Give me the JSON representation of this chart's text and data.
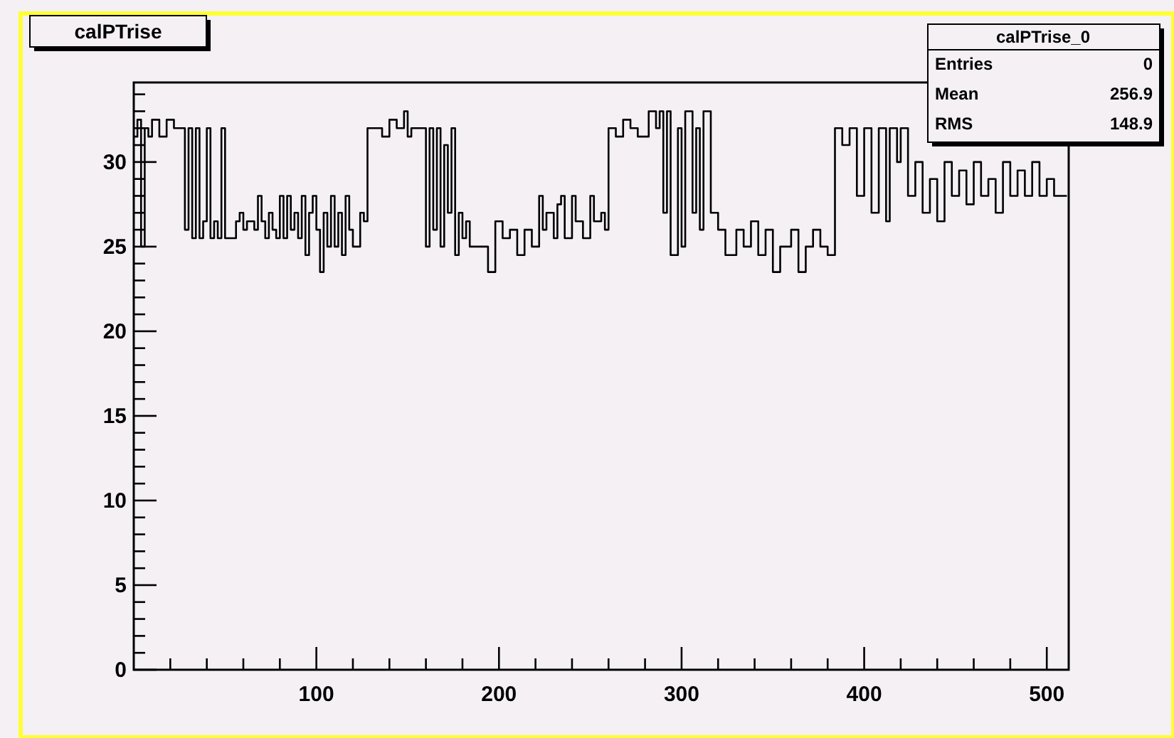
{
  "chart_data": {
    "type": "step",
    "title": "calPTrise",
    "annotations": [
      "calPTrise_0",
      "Entries",
      "0",
      "Mean",
      "256.9",
      "RMS",
      "148.9"
    ],
    "xlim": [
      0,
      512
    ],
    "ylim": [
      0,
      34.7
    ],
    "xticks": [
      {
        "value": 20,
        "label": null
      },
      {
        "value": 40,
        "label": null
      },
      {
        "value": 60,
        "label": null
      },
      {
        "value": 80,
        "label": null
      },
      100,
      {
        "value": 120,
        "label": null
      },
      {
        "value": 140,
        "label": null
      },
      {
        "value": 160,
        "label": null
      },
      {
        "value": 180,
        "label": null
      },
      200,
      {
        "value": 220,
        "label": null
      },
      {
        "value": 240,
        "label": null
      },
      {
        "value": 260,
        "label": null
      },
      {
        "value": 280,
        "label": null
      },
      300,
      {
        "value": 320,
        "label": null
      },
      {
        "value": 340,
        "label": null
      },
      {
        "value": 360,
        "label": null
      },
      {
        "value": 380,
        "label": null
      },
      400,
      {
        "value": 420,
        "label": null
      },
      {
        "value": 440,
        "label": null
      },
      {
        "value": 460,
        "label": null
      },
      {
        "value": 480,
        "label": null
      },
      500
    ],
    "yticks": [
      0,
      {
        "value": 1,
        "label": null
      },
      {
        "value": 2,
        "label": null
      },
      {
        "value": 3,
        "label": null
      },
      {
        "value": 4,
        "label": null
      },
      5,
      {
        "value": 6,
        "label": null
      },
      {
        "value": 7,
        "label": null
      },
      {
        "value": 8,
        "label": null
      },
      {
        "value": 9,
        "label": null
      },
      10,
      {
        "value": 11,
        "label": null
      },
      {
        "value": 12,
        "label": null
      },
      {
        "value": 13,
        "label": null
      },
      {
        "value": 14,
        "label": null
      },
      15,
      {
        "value": 16,
        "label": null
      },
      {
        "value": 17,
        "label": null
      },
      {
        "value": 18,
        "label": null
      },
      {
        "value": 19,
        "label": null
      },
      20,
      {
        "value": 21,
        "label": null
      },
      {
        "value": 22,
        "label": null
      },
      {
        "value": 23,
        "label": null
      },
      {
        "value": 24,
        "label": null
      },
      25,
      {
        "value": 26,
        "label": null
      },
      {
        "value": 27,
        "label": null
      },
      {
        "value": 28,
        "label": null
      },
      {
        "value": 29,
        "label": null
      },
      30,
      {
        "value": 31,
        "label": null
      },
      {
        "value": 32,
        "label": null
      },
      {
        "value": 33,
        "label": null
      },
      {
        "value": 34,
        "label": null
      }
    ],
    "grid": false,
    "series": [
      {
        "color": "#000000",
        "x": [
          0,
          2,
          4,
          6,
          8,
          10,
          14,
          18,
          22,
          26,
          28,
          30,
          32,
          34,
          36,
          38,
          40,
          42,
          44,
          46,
          48,
          50,
          54,
          56,
          58,
          60,
          62,
          66,
          68,
          70,
          72,
          74,
          76,
          78,
          80,
          82,
          84,
          86,
          88,
          90,
          92,
          94,
          96,
          98,
          100,
          102,
          104,
          106,
          108,
          110,
          112,
          114,
          116,
          118,
          120,
          124,
          126,
          128,
          132,
          136,
          140,
          144,
          148,
          150,
          152,
          158,
          160,
          162,
          164,
          166,
          168,
          170,
          172,
          174,
          176,
          178,
          180,
          182,
          184,
          190,
          194,
          198,
          202,
          206,
          210,
          214,
          218,
          222,
          224,
          226,
          230,
          232,
          234,
          236,
          240,
          242,
          246,
          250,
          252,
          256,
          258,
          260,
          264,
          268,
          272,
          276,
          282,
          286,
          288,
          290,
          292,
          294,
          298,
          300,
          302,
          306,
          308,
          310,
          312,
          316,
          320,
          324,
          330,
          334,
          338,
          342,
          346,
          350,
          354,
          360,
          364,
          368,
          372,
          376,
          380,
          384,
          388,
          392,
          396,
          400,
          404,
          408,
          412,
          414,
          418,
          420,
          424,
          428,
          432,
          436,
          440,
          444,
          448,
          452,
          456,
          460,
          464,
          468,
          472,
          476,
          480,
          484,
          488,
          492,
          496,
          500,
          504,
          511
        ],
        "values": [
          31.5,
          32.5,
          25,
          32,
          31.5,
          32.5,
          31.5,
          32.5,
          32,
          32,
          26,
          32,
          25.5,
          32,
          25.5,
          26.5,
          32,
          25.5,
          26.5,
          25.5,
          32,
          25.5,
          25.5,
          26.5,
          27,
          26,
          26.5,
          26,
          28,
          26.5,
          25.5,
          27,
          26,
          25.5,
          28,
          25.5,
          28,
          26,
          27,
          25.5,
          28,
          24.5,
          27,
          28,
          26,
          23.5,
          27,
          25,
          28,
          25,
          27,
          24.5,
          28,
          26,
          25,
          27,
          26.5,
          32,
          32,
          31.5,
          32.5,
          32,
          33,
          31.5,
          32,
          32,
          25,
          32,
          26,
          32,
          25,
          31,
          27,
          32,
          24.5,
          27,
          25.5,
          26.5,
          25,
          25,
          23.5,
          26.5,
          25.5,
          26,
          24.5,
          26,
          25,
          28,
          26,
          27,
          25.5,
          27.5,
          28,
          25.5,
          28,
          26.5,
          25.5,
          28,
          26.5,
          27,
          26,
          32,
          31.5,
          32.5,
          32,
          31.5,
          33,
          32,
          33,
          27,
          33,
          24.5,
          32,
          25,
          33,
          27,
          32,
          26,
          33,
          27,
          26,
          24.5,
          26,
          25,
          26.5,
          24.5,
          26,
          23.5,
          25,
          26,
          23.5,
          25,
          26,
          25,
          24.5,
          32,
          31,
          32,
          28,
          32,
          27,
          32,
          26.5,
          32,
          30,
          32,
          28,
          30,
          27,
          29,
          26.5,
          30,
          28,
          29.5,
          27.5,
          30,
          28,
          29,
          27,
          30,
          28,
          29.5,
          28,
          30,
          28,
          29,
          28,
          28
        ]
      }
    ]
  }
}
